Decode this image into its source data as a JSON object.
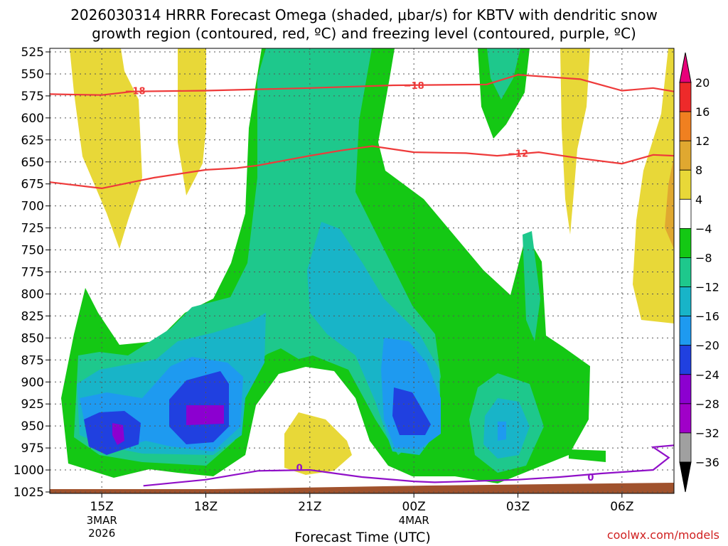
{
  "chart_data": {
    "type": "heatmap",
    "title_line1": "2026030314 HRRR Forecast Omega (shaded, μbar/s) for KBTV with dendritic snow",
    "title_line2": "growth region (contoured, red, ºC) and freezing level (contoured, purple, ºC)",
    "xlabel": "Forecast Time (UTC)",
    "credit": "coolwx.com/models",
    "y_ticks": [
      525,
      550,
      575,
      600,
      625,
      650,
      675,
      700,
      725,
      750,
      775,
      800,
      825,
      850,
      875,
      900,
      925,
      950,
      975,
      1000,
      1025
    ],
    "ylim": [
      525,
      1025
    ],
    "xlim": [
      14.5,
      20.5
    ],
    "x_ticks": [
      {
        "x": 15,
        "label": "15Z",
        "sub1": "3MAR",
        "sub2": "2026"
      },
      {
        "x": 16,
        "label": "18Z",
        "sub1": "",
        "sub2": ""
      },
      {
        "x": 17,
        "label": "21Z",
        "sub1": "",
        "sub2": ""
      },
      {
        "x": 18,
        "label": "00Z",
        "sub1": "4MAR",
        "sub2": ""
      },
      {
        "x": 19,
        "label": "03Z",
        "sub1": "",
        "sub2": ""
      },
      {
        "x": 20,
        "label": "06Z",
        "sub1": "",
        "sub2": ""
      }
    ],
    "colorbar": {
      "levels": [
        "20",
        "16",
        "12",
        "8",
        "4",
        "−4",
        "−8",
        "−12",
        "−16",
        "−20",
        "−24",
        "−28",
        "−32",
        "−36"
      ],
      "colors": [
        "#e8007a",
        "#ee2a2a",
        "#f08020",
        "#e0a830",
        "#e8d838",
        "#ffffff",
        "#14c814",
        "#1ec88c",
        "#18b4c8",
        "#1e9af0",
        "#2040e0",
        "#8c00d0",
        "#a000c8",
        "#a0a0a0",
        "#000000"
      ]
    },
    "contours": {
      "dgz": [
        {
          "label": "−18",
          "points": [
            [
              14.5,
              573
            ],
            [
              15.0,
              574
            ],
            [
              15.3,
              570
            ],
            [
              16.0,
              569
            ],
            [
              17.0,
              566
            ],
            [
              17.8,
              563
            ],
            [
              18.7,
              562
            ],
            [
              19.0,
              551
            ],
            [
              19.6,
              556
            ],
            [
              20.0,
              569
            ],
            [
              20.3,
              566
            ],
            [
              20.5,
              570
            ]
          ],
          "label_at": [
            [
              15.32,
              569
            ],
            [
              18.0,
              563
            ]
          ]
        },
        {
          "label": "−12",
          "points": [
            [
              14.5,
              673
            ],
            [
              15.0,
              680
            ],
            [
              15.5,
              668
            ],
            [
              16.0,
              659
            ],
            [
              16.3,
              657
            ],
            [
              16.5,
              654
            ],
            [
              17.0,
              643
            ],
            [
              17.3,
              637
            ],
            [
              17.6,
              632
            ],
            [
              18.0,
              639
            ],
            [
              18.5,
              640
            ],
            [
              18.8,
              643
            ],
            [
              19.2,
              639
            ],
            [
              19.6,
              646
            ],
            [
              20.0,
              652
            ],
            [
              20.3,
              642
            ],
            [
              20.5,
              643
            ]
          ],
          "label_at": [
            [
              19.0,
              640
            ]
          ]
        }
      ],
      "freezing": [
        {
          "label": "0",
          "points": [
            [
              15.4,
              1018
            ],
            [
              16.0,
              1011
            ],
            [
              16.5,
              1001
            ],
            [
              17.0,
              1000
            ],
            [
              17.5,
              1008
            ],
            [
              18.0,
              1013
            ],
            [
              18.2,
              1014
            ],
            [
              18.5,
              1013
            ],
            [
              19.0,
              1011
            ],
            [
              19.4,
              1008
            ],
            [
              19.8,
              1004
            ],
            [
              20.3,
              1000
            ],
            [
              20.45,
              986
            ],
            [
              20.3,
              974
            ],
            [
              20.5,
              972
            ]
          ],
          "label_at": [
            [
              16.9,
              997
            ],
            [
              19.7,
              1008
            ]
          ]
        }
      ]
    }
  }
}
